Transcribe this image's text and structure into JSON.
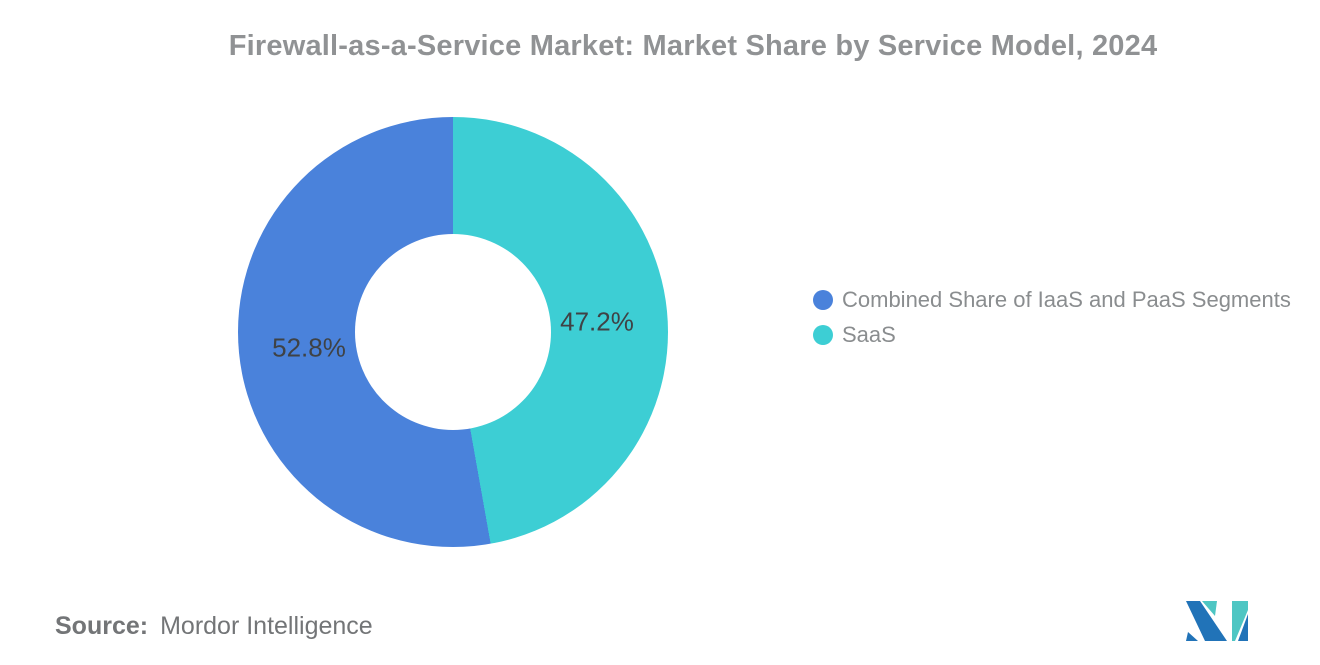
{
  "chart_data": {
    "type": "pie",
    "subtype": "donut",
    "title": "Firewall-as-a-Service Market: Market Share by Service Model, 2024",
    "unit": "%",
    "slices": [
      {
        "label": "Combined Share of IaaS and PaaS Segments",
        "value": 52.8,
        "pct_label": "52.8%",
        "color": "#4A82DB"
      },
      {
        "label": "SaaS",
        "value": 47.2,
        "pct_label": "47.2%",
        "color": "#3DCED4"
      }
    ],
    "start_angle": "12-oclock",
    "clockwise_first_slice": "SaaS",
    "hole_ratio": 0.456,
    "label_color": "#3F4245",
    "legend_position": "right",
    "grid": false
  },
  "source": {
    "prefix": "Source:",
    "name": "Mordor Intelligence"
  },
  "logo": {
    "name": "mordor-intelligence-logo",
    "dark_color": "#2173B8",
    "teal_color": "#4EC6C3"
  }
}
